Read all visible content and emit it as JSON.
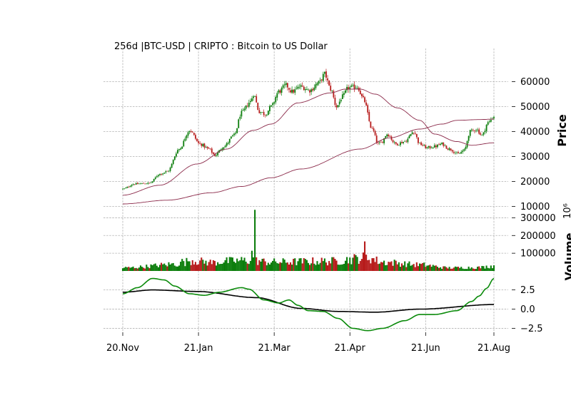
{
  "chart_data": {
    "type": "candlestick",
    "title": "256d |BTC-USD | CRIPTO : Bitcoin to US Dollar",
    "x_ticks": [
      "20.Nov",
      "21.Jan",
      "21.Mar",
      "21.Apr",
      "21.Jun",
      "21.Aug"
    ],
    "price_panel": {
      "ylabel": "Price",
      "yticks": [
        "60000",
        "50000",
        "40000",
        "30000",
        "20000",
        "10000"
      ],
      "ylim": [
        9000,
        67000
      ],
      "close_anchors": [
        [
          0,
          17000
        ],
        [
          8,
          19000
        ],
        [
          18,
          19300
        ],
        [
          25,
          23000
        ],
        [
          30,
          24000
        ],
        [
          38,
          33000
        ],
        [
          45,
          40500
        ],
        [
          52,
          35000
        ],
        [
          58,
          33000
        ],
        [
          62,
          30500
        ],
        [
          68,
          34000
        ],
        [
          75,
          38500
        ],
        [
          80,
          47500
        ],
        [
          86,
          52000
        ],
        [
          88,
          55000
        ],
        [
          92,
          48000
        ],
        [
          96,
          47000
        ],
        [
          100,
          50000
        ],
        [
          105,
          56000
        ],
        [
          110,
          58500
        ],
        [
          114,
          56000
        ],
        [
          120,
          58000
        ],
        [
          126,
          56500
        ],
        [
          132,
          59500
        ],
        [
          136,
          63000
        ],
        [
          140,
          57000
        ],
        [
          144,
          50000
        ],
        [
          148,
          54000
        ],
        [
          152,
          57500
        ],
        [
          158,
          58000
        ],
        [
          162,
          53000
        ],
        [
          168,
          41000
        ],
        [
          172,
          35000
        ],
        [
          174,
          35500
        ],
        [
          178,
          39000
        ],
        [
          184,
          35000
        ],
        [
          190,
          36000
        ],
        [
          196,
          40000
        ],
        [
          200,
          35000
        ],
        [
          205,
          33500
        ],
        [
          210,
          34000
        ],
        [
          215,
          35000
        ],
        [
          220,
          33000
        ],
        [
          226,
          31000
        ],
        [
          230,
          32500
        ],
        [
          234,
          40000
        ],
        [
          238,
          41000
        ],
        [
          242,
          38500
        ],
        [
          246,
          43500
        ],
        [
          250,
          46000
        ]
      ],
      "ma_short_anchors": [
        [
          0,
          14500
        ],
        [
          25,
          18500
        ],
        [
          50,
          27000
        ],
        [
          70,
          33000
        ],
        [
          88,
          40500
        ],
        [
          100,
          43000
        ],
        [
          118,
          51500
        ],
        [
          140,
          55500
        ],
        [
          150,
          57000
        ],
        [
          160,
          57000
        ],
        [
          170,
          55000
        ],
        [
          185,
          49500
        ],
        [
          200,
          44500
        ],
        [
          210,
          39000
        ],
        [
          225,
          36000
        ],
        [
          235,
          34500
        ],
        [
          250,
          35500
        ]
      ],
      "ma_long_anchors": [
        [
          0,
          11000
        ],
        [
          30,
          12500
        ],
        [
          60,
          15500
        ],
        [
          80,
          18000
        ],
        [
          100,
          21500
        ],
        [
          120,
          25000
        ],
        [
          160,
          33000
        ],
        [
          180,
          37500
        ],
        [
          200,
          41000
        ],
        [
          215,
          43000
        ],
        [
          225,
          44500
        ],
        [
          240,
          44800
        ],
        [
          250,
          45000
        ]
      ]
    },
    "volume_panel": {
      "ylabel": "Volume",
      "unit": "10^6",
      "yticks": [
        "300000",
        "200000",
        "100000"
      ],
      "ylim": [
        0,
        350000
      ],
      "spike": {
        "index": 89,
        "value": 345000
      },
      "level_anchors": [
        [
          0,
          18000
        ],
        [
          40,
          40000
        ],
        [
          45,
          60000
        ],
        [
          60,
          48000
        ],
        [
          70,
          55000
        ],
        [
          85,
          60000
        ],
        [
          100,
          50000
        ],
        [
          140,
          55000
        ],
        [
          165,
          75000
        ],
        [
          175,
          50000
        ],
        [
          200,
          35000
        ],
        [
          220,
          18000
        ],
        [
          240,
          20000
        ],
        [
          250,
          28000
        ]
      ]
    },
    "indicator_panel": {
      "yticks": [
        "2.5",
        "0.0",
        "−2.5"
      ],
      "ylim": [
        -3.2,
        4.6
      ],
      "fast_line_anchors": [
        [
          0,
          2.0
        ],
        [
          10,
          2.8
        ],
        [
          20,
          4.0
        ],
        [
          28,
          3.8
        ],
        [
          35,
          3.0
        ],
        [
          45,
          2.0
        ],
        [
          55,
          1.8
        ],
        [
          65,
          2.2
        ],
        [
          80,
          2.8
        ],
        [
          85,
          2.6
        ],
        [
          95,
          1.2
        ],
        [
          105,
          0.8
        ],
        [
          112,
          1.2
        ],
        [
          118,
          0.5
        ],
        [
          125,
          -0.2
        ],
        [
          135,
          -0.3
        ],
        [
          145,
          -1.2
        ],
        [
          155,
          -2.5
        ],
        [
          165,
          -2.8
        ],
        [
          175,
          -2.5
        ],
        [
          190,
          -1.5
        ],
        [
          200,
          -0.7
        ],
        [
          210,
          -0.7
        ],
        [
          225,
          -0.2
        ],
        [
          235,
          1.0
        ],
        [
          240,
          1.7
        ],
        [
          245,
          2.7
        ],
        [
          250,
          4.0
        ]
      ],
      "slow_line_anchors": [
        [
          0,
          2.2
        ],
        [
          20,
          2.5
        ],
        [
          50,
          2.3
        ],
        [
          90,
          1.5
        ],
        [
          120,
          0.1
        ],
        [
          145,
          -0.3
        ],
        [
          170,
          -0.4
        ],
        [
          200,
          0.0
        ],
        [
          250,
          0.6
        ]
      ]
    },
    "n_bars": 251,
    "colors": {
      "up": "#0b7d0b",
      "down": "#b71c1c",
      "ma": "#8b2a4a",
      "fast": "#0a8a0a",
      "slow": "#000000"
    }
  }
}
